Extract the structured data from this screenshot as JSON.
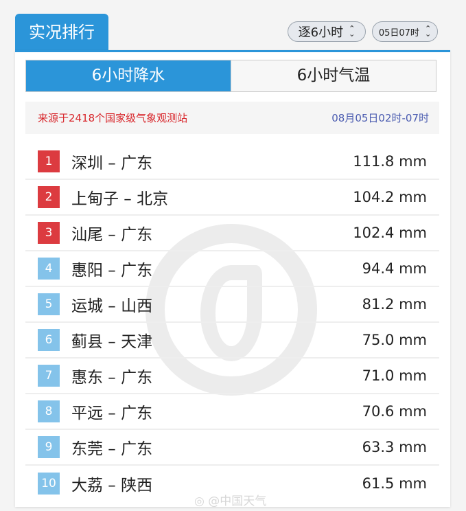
{
  "header": {
    "title": "实况排行",
    "interval_select": "逐6小时",
    "time_select": "05日07时"
  },
  "tabs": [
    {
      "label": "6小时降水",
      "active": true
    },
    {
      "label": "6小时气温",
      "active": false
    }
  ],
  "source": {
    "text": "来源于2418个国家级气象观测站",
    "range": "08月05日02时-07时"
  },
  "rows": [
    {
      "rank": "1",
      "name": "深圳 – 广东",
      "value": "111.8 mm"
    },
    {
      "rank": "2",
      "name": "上甸子 – 北京",
      "value": "104.2 mm"
    },
    {
      "rank": "3",
      "name": "汕尾 – 广东",
      "value": "102.4 mm"
    },
    {
      "rank": "4",
      "name": "惠阳 – 广东",
      "value": "94.4 mm"
    },
    {
      "rank": "5",
      "name": "运城 – 山西",
      "value": "81.2 mm"
    },
    {
      "rank": "6",
      "name": "蓟县 – 天津",
      "value": "75.0 mm"
    },
    {
      "rank": "7",
      "name": "惠东 – 广东",
      "value": "71.0 mm"
    },
    {
      "rank": "8",
      "name": "平远 – 广东",
      "value": "70.6 mm"
    },
    {
      "rank": "9",
      "name": "东莞 – 广东",
      "value": "63.3 mm"
    },
    {
      "rank": "10",
      "name": "大荔 – 陕西",
      "value": "61.5 mm"
    }
  ],
  "colors": {
    "accent": "#2b95d9",
    "top_rank": "#dc3b40",
    "other_rank": "#84c3ea",
    "source_text": "#d8262b",
    "range_text": "#4a5bb0"
  },
  "watermark": "@中国天气"
}
